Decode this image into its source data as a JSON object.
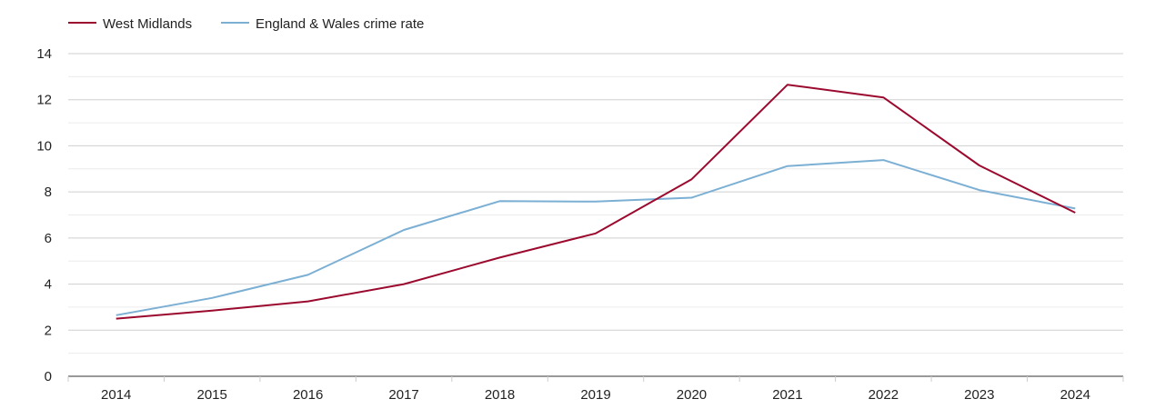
{
  "chart_data": {
    "type": "line",
    "x": [
      "2014",
      "2015",
      "2016",
      "2017",
      "2018",
      "2019",
      "2020",
      "2021",
      "2022",
      "2023",
      "2024"
    ],
    "series": [
      {
        "name": "West Midlands",
        "color": "#9b0a2e",
        "values": [
          2.5,
          2.85,
          3.25,
          4.0,
          5.15,
          6.2,
          8.55,
          12.65,
          12.1,
          9.15,
          7.1
        ]
      },
      {
        "name": "England & Wales crime rate",
        "color": "#7bafd4",
        "values": [
          2.65,
          3.4,
          4.4,
          6.35,
          7.6,
          7.58,
          7.75,
          9.12,
          9.38,
          8.08,
          7.28
        ]
      }
    ],
    "ylim": [
      0,
      14
    ],
    "yticks": [
      "0",
      "2",
      "4",
      "6",
      "8",
      "10",
      "12",
      "14"
    ],
    "grid": true,
    "legend_position": "top-left"
  }
}
